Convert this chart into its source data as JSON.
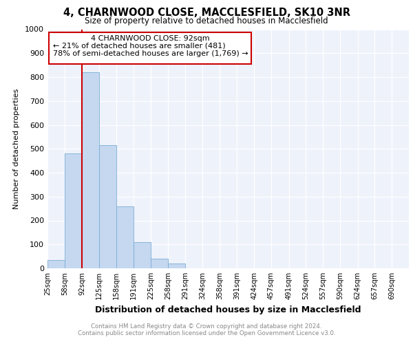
{
  "title": "4, CHARNWOOD CLOSE, MACCLESFIELD, SK10 3NR",
  "subtitle": "Size of property relative to detached houses in Macclesfield",
  "xlabel": "Distribution of detached houses by size in Macclesfield",
  "ylabel": "Number of detached properties",
  "property_size": 92,
  "annotation_line1": "4 CHARNWOOD CLOSE: 92sqm",
  "annotation_line2": "← 21% of detached houses are smaller (481)",
  "annotation_line3": "78% of semi-detached houses are larger (1,769) →",
  "footer_line1": "Contains HM Land Registry data © Crown copyright and database right 2024.",
  "footer_line2": "Contains public sector information licensed under the Open Government Licence v3.0.",
  "bins": [
    25,
    58,
    92,
    125,
    158,
    191,
    225,
    258,
    291,
    324,
    358,
    391,
    424,
    457,
    491,
    524,
    557,
    590,
    624,
    657,
    690
  ],
  "bar_heights": [
    35,
    480,
    820,
    515,
    260,
    110,
    40,
    20,
    0,
    0,
    0,
    0,
    0,
    0,
    0,
    0,
    0,
    0,
    0,
    0
  ],
  "bar_color": "#c5d8f0",
  "bar_edge_color": "#7aadd4",
  "vline_color": "#cc0000",
  "vline_x": 92,
  "annotation_box_color": "#cc0000",
  "background_color": "#eef2fb",
  "ylim": [
    0,
    1000
  ],
  "yticks": [
    0,
    100,
    200,
    300,
    400,
    500,
    600,
    700,
    800,
    900,
    1000
  ]
}
